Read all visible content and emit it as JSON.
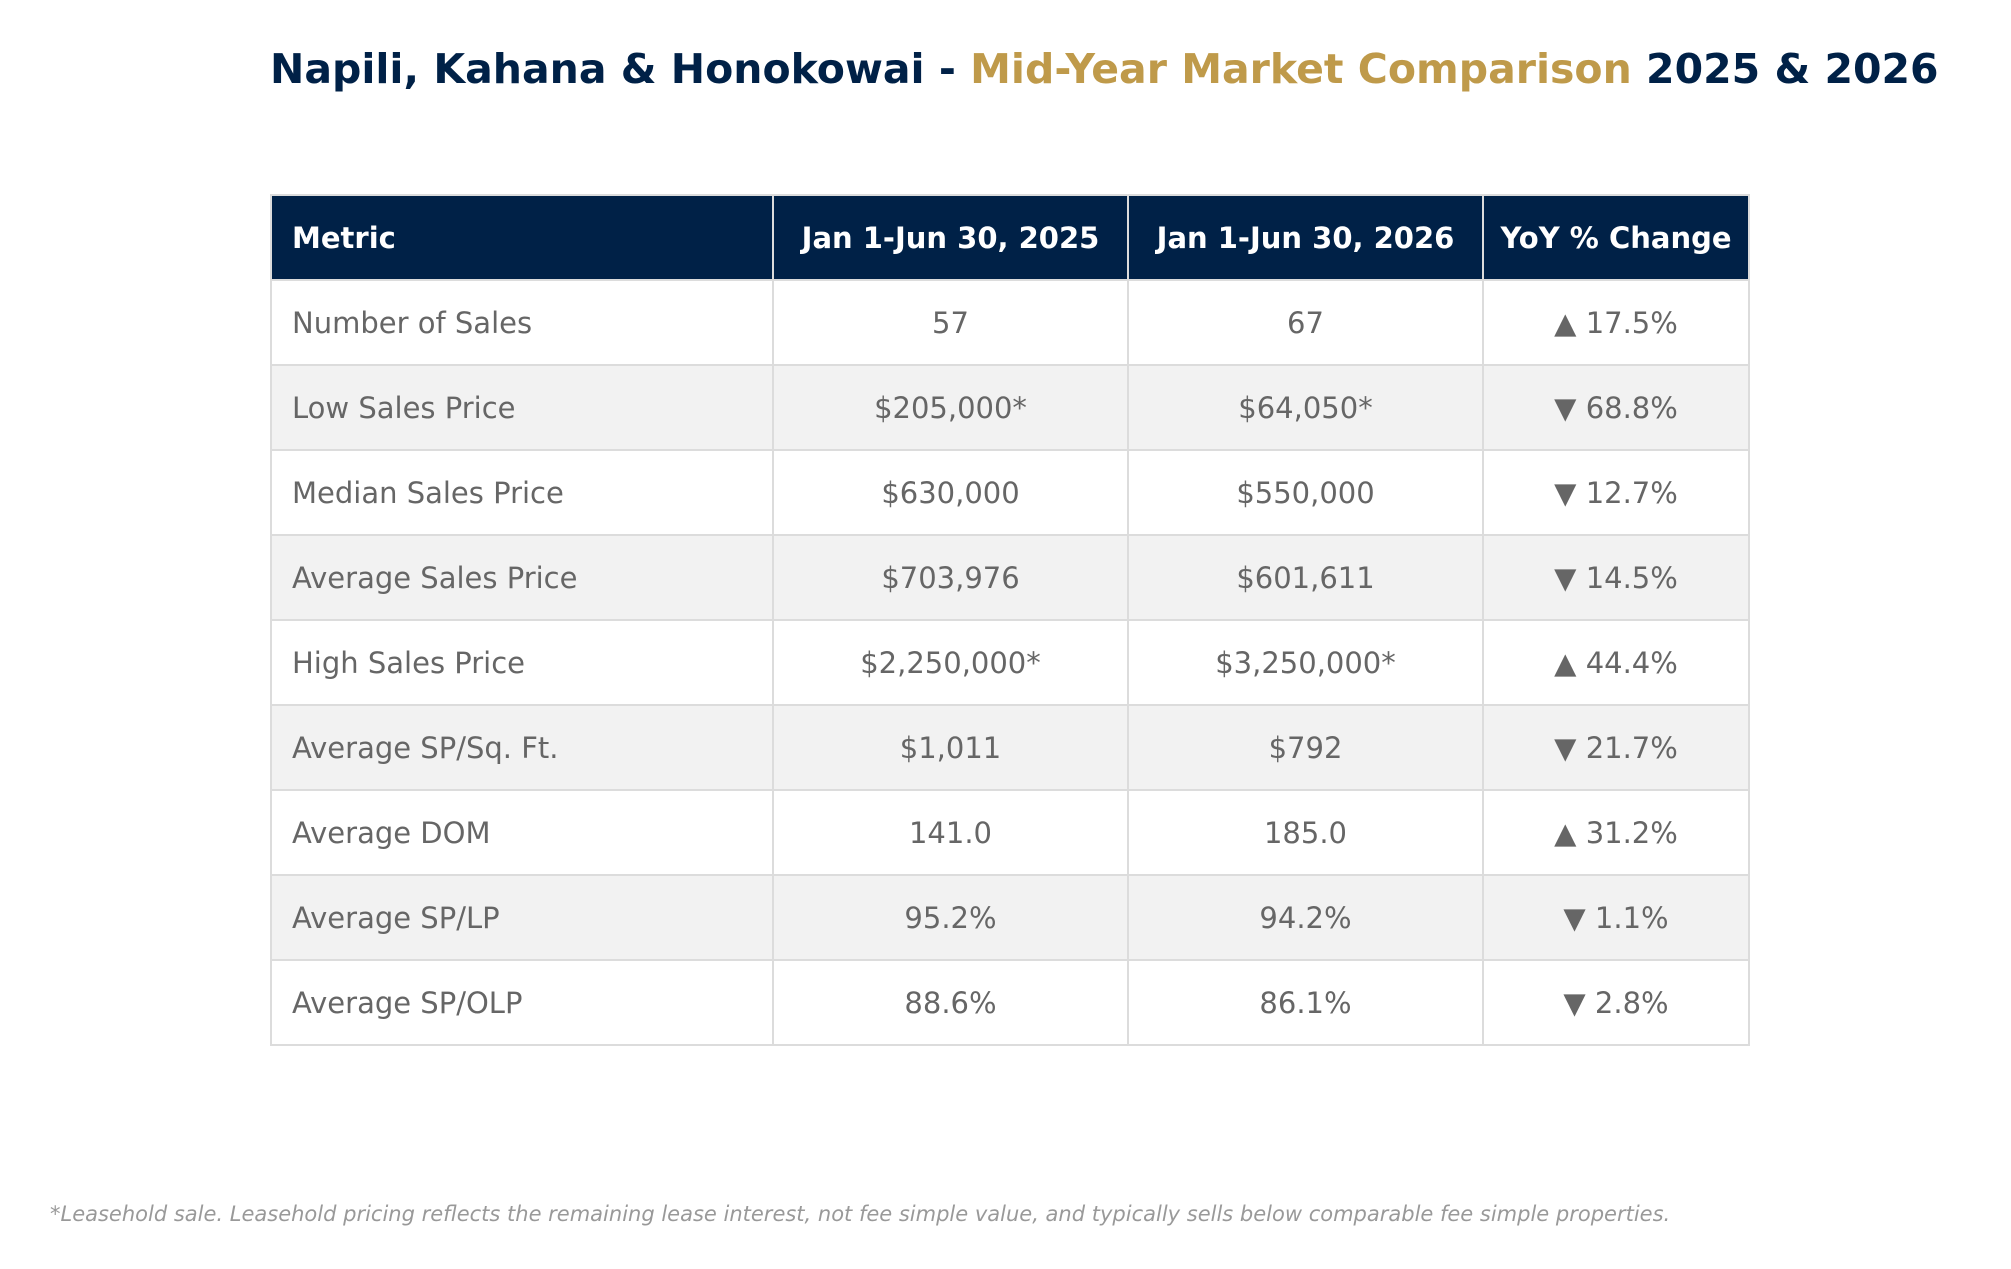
{
  "chart_data": {
    "type": "table",
    "title": {
      "part1": "Napili, Kahana & Honokowai - ",
      "part2": "Mid-Year Market Comparison",
      "part3": " 2025 & 2026"
    },
    "columns": [
      "Metric",
      "Jan 1-Jun 30, 2025",
      "Jan 1-Jun 30, 2026",
      "YoY % Change"
    ],
    "rows": [
      {
        "metric": "Number of Sales",
        "v2025": "57",
        "v2026": "67",
        "change": "▲ 17.5%"
      },
      {
        "metric": "Low Sales Price",
        "v2025": "$205,000*",
        "v2026": "$64,050*",
        "change": "▼ 68.8%"
      },
      {
        "metric": "Median Sales Price",
        "v2025": "$630,000",
        "v2026": "$550,000",
        "change": "▼ 12.7%"
      },
      {
        "metric": "Average Sales Price",
        "v2025": "$703,976",
        "v2026": "$601,611",
        "change": "▼ 14.5%"
      },
      {
        "metric": "High Sales Price",
        "v2025": "$2,250,000*",
        "v2026": "$3,250,000*",
        "change": "▲ 44.4%"
      },
      {
        "metric": "Average SP/Sq. Ft.",
        "v2025": "$1,011",
        "v2026": "$792",
        "change": "▼ 21.7%"
      },
      {
        "metric": "Average DOM",
        "v2025": "141.0",
        "v2026": "185.0",
        "change": "▲ 31.2%"
      },
      {
        "metric": "Average SP/LP",
        "v2025": "95.2%",
        "v2026": "94.2%",
        "change": "▼ 1.1%"
      },
      {
        "metric": "Average SP/OLP",
        "v2025": "88.6%",
        "v2026": "86.1%",
        "change": "▼ 2.8%"
      }
    ],
    "footnote": "*Leasehold sale. Leasehold pricing reflects the remaining lease interest, not fee simple value, and typically sells below comparable fee simple properties."
  },
  "colors": {
    "header_bg": "#002147",
    "title_accent": "#bf9a4a",
    "alt_row_bg": "#f2f2f2",
    "cell_text": "#666666"
  }
}
